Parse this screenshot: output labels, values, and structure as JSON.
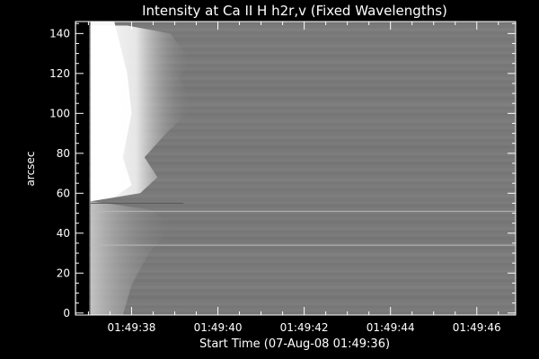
{
  "chart_data": {
    "type": "heatmap",
    "title": "Intensity at Ca II H h2r,v (Fixed Wavelengths)",
    "xlabel": "Start Time (07-Aug-08 01:49:36)",
    "ylabel": "arcsec",
    "x_tick_labels": [
      "01:49:38",
      "01:49:40",
      "01:49:42",
      "01:49:44",
      "01:49:46"
    ],
    "x_tick_seconds": [
      2,
      4,
      6,
      8,
      10
    ],
    "xlim_seconds": [
      0.7,
      10.9
    ],
    "y_ticks": [
      0,
      20,
      40,
      60,
      80,
      100,
      120,
      140
    ],
    "ylim": [
      -1,
      146
    ],
    "grid": false,
    "colormap": "grayscale",
    "colors": {
      "background": "#000000",
      "foreground": "#ffffff",
      "field": "#7b7b7b",
      "bright": "#ffffff",
      "dark_column": "#000000"
    }
  }
}
